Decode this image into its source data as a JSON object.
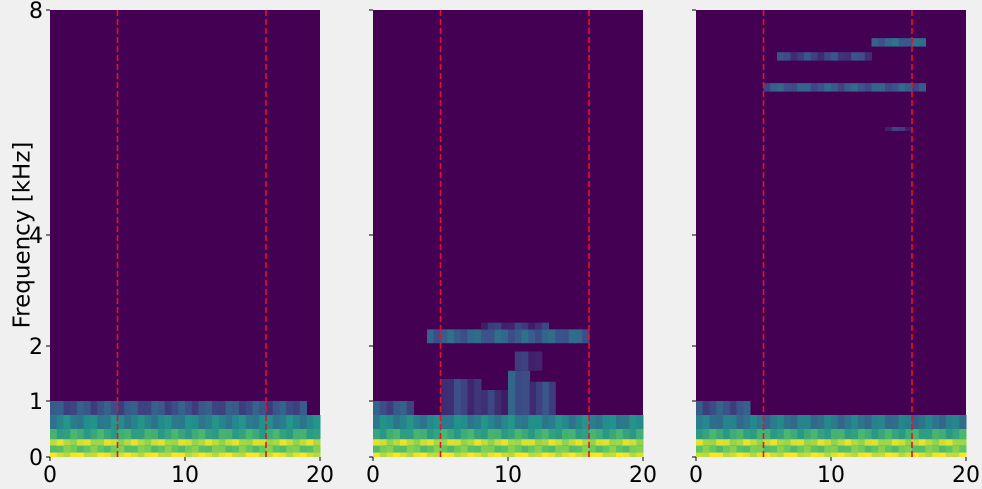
{
  "chart_data": {
    "type": "heatmap",
    "ylabel": "Frequency [kHz]",
    "xlim": [
      0,
      20
    ],
    "ylim_khz": [
      0,
      8
    ],
    "y_scale": "piecewise-linear (0-1, 1-2, 2-4, 4-8 kHz segments)",
    "x_ticks": [
      0,
      10,
      20
    ],
    "y_ticks": [
      0,
      1,
      2,
      4,
      8
    ],
    "colormap": [
      "#440154",
      "#3b528b",
      "#21918c",
      "#5ec962",
      "#fde725"
    ],
    "background_color": "#440154",
    "marker_color": "#e8102a",
    "marker_lines_x": [
      5,
      16
    ],
    "grid": false,
    "shared_y_axis": true,
    "panels": [
      {
        "id": "panel-1",
        "bands": [
          {
            "f_low": 0.0,
            "f_high": 0.08,
            "x_start": 0,
            "x_end": 20,
            "intensity": 0.95
          },
          {
            "f_low": 0.08,
            "f_high": 0.2,
            "x_start": 0,
            "x_end": 20,
            "intensity": 0.75
          },
          {
            "f_low": 0.2,
            "f_high": 0.32,
            "x_start": 0,
            "x_end": 20,
            "intensity": 0.9
          },
          {
            "f_low": 0.32,
            "f_high": 0.5,
            "x_start": 0,
            "x_end": 20,
            "intensity": 0.6
          },
          {
            "f_low": 0.5,
            "f_high": 0.75,
            "x_start": 0,
            "x_end": 20,
            "intensity": 0.45
          },
          {
            "f_low": 0.75,
            "f_high": 1.0,
            "x_start": 0,
            "x_end": 19,
            "intensity": 0.25
          }
        ]
      },
      {
        "id": "panel-2",
        "bands": [
          {
            "f_low": 0.0,
            "f_high": 0.08,
            "x_start": 0,
            "x_end": 20,
            "intensity": 0.95
          },
          {
            "f_low": 0.08,
            "f_high": 0.2,
            "x_start": 0,
            "x_end": 20,
            "intensity": 0.75
          },
          {
            "f_low": 0.2,
            "f_high": 0.32,
            "x_start": 0,
            "x_end": 20,
            "intensity": 0.9
          },
          {
            "f_low": 0.32,
            "f_high": 0.5,
            "x_start": 0,
            "x_end": 20,
            "intensity": 0.6
          },
          {
            "f_low": 0.5,
            "f_high": 0.75,
            "x_start": 0,
            "x_end": 20,
            "intensity": 0.45
          },
          {
            "f_low": 0.75,
            "f_high": 1.0,
            "x_start": 0,
            "x_end": 3,
            "intensity": 0.25
          },
          {
            "f_low": 0.75,
            "f_high": 1.4,
            "x_start": 5,
            "x_end": 8,
            "intensity": 0.18
          },
          {
            "f_low": 0.75,
            "f_high": 1.2,
            "x_start": 8,
            "x_end": 10,
            "intensity": 0.15
          },
          {
            "f_low": 0.75,
            "f_high": 1.55,
            "x_start": 10,
            "x_end": 11.6,
            "intensity": 0.28
          },
          {
            "f_low": 0.75,
            "f_high": 1.35,
            "x_start": 11.6,
            "x_end": 13.5,
            "intensity": 0.2
          },
          {
            "f_low": 1.55,
            "f_high": 1.9,
            "x_start": 10.5,
            "x_end": 12.5,
            "intensity": 0.15
          },
          {
            "f_low": 2.05,
            "f_high": 2.3,
            "x_start": 4,
            "x_end": 16,
            "intensity": 0.3
          },
          {
            "f_low": 2.3,
            "f_high": 2.42,
            "x_start": 8,
            "x_end": 13,
            "intensity": 0.15
          }
        ]
      },
      {
        "id": "panel-3",
        "bands": [
          {
            "f_low": 0.0,
            "f_high": 0.08,
            "x_start": 0,
            "x_end": 20,
            "intensity": 0.95
          },
          {
            "f_low": 0.08,
            "f_high": 0.2,
            "x_start": 0,
            "x_end": 20,
            "intensity": 0.75
          },
          {
            "f_low": 0.2,
            "f_high": 0.32,
            "x_start": 0,
            "x_end": 20,
            "intensity": 0.9
          },
          {
            "f_low": 0.32,
            "f_high": 0.5,
            "x_start": 0,
            "x_end": 20,
            "intensity": 0.6
          },
          {
            "f_low": 0.5,
            "f_high": 0.75,
            "x_start": 0,
            "x_end": 20,
            "intensity": 0.4
          },
          {
            "f_low": 0.75,
            "f_high": 1.0,
            "x_start": 0,
            "x_end": 4,
            "intensity": 0.25
          },
          {
            "f_low": 6.55,
            "f_high": 6.7,
            "x_start": 5,
            "x_end": 17,
            "intensity": 0.28
          },
          {
            "f_low": 7.1,
            "f_high": 7.25,
            "x_start": 6,
            "x_end": 13,
            "intensity": 0.2
          },
          {
            "f_low": 7.35,
            "f_high": 7.5,
            "x_start": 13,
            "x_end": 17,
            "intensity": 0.32
          },
          {
            "f_low": 5.85,
            "f_high": 5.92,
            "x_start": 14,
            "x_end": 16,
            "intensity": 0.15
          }
        ]
      }
    ]
  }
}
